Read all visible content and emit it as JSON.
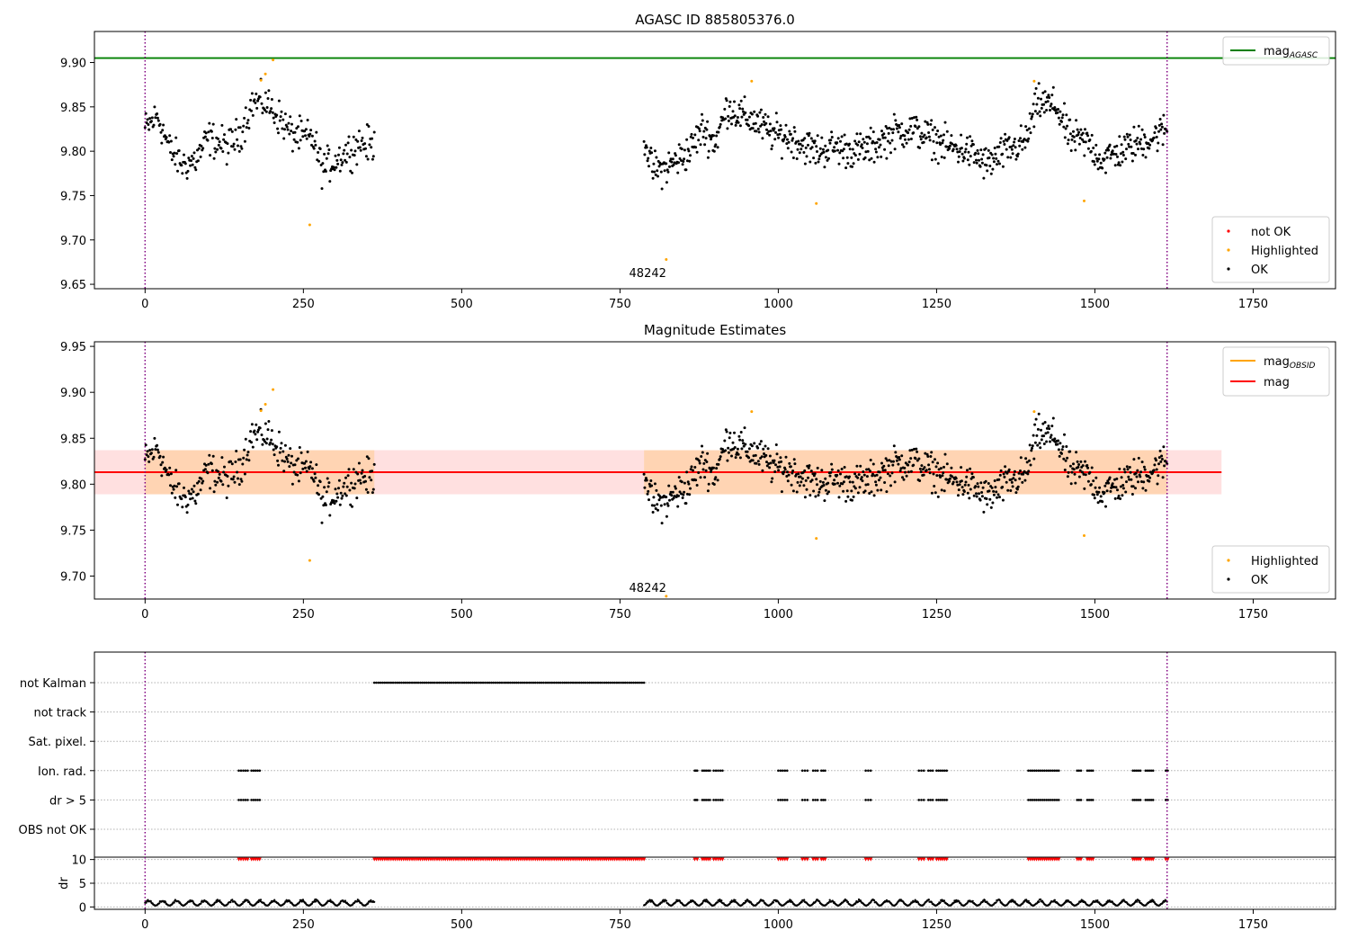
{
  "chart_data": [
    {
      "type": "scatter",
      "title": "AGASC ID 885805376.0",
      "xlim": [
        -80,
        1880
      ],
      "ylim": [
        9.645,
        9.935
      ],
      "xticks": [
        0,
        250,
        500,
        750,
        1000,
        1250,
        1500,
        1750
      ],
      "yticks": [
        9.65,
        9.7,
        9.75,
        9.8,
        9.85,
        9.9
      ],
      "ytick_labels": [
        "9.65",
        "9.70",
        "9.75",
        "9.80",
        "9.85",
        "9.90"
      ],
      "grid": false,
      "vlines": [
        0,
        1614
      ],
      "hline": {
        "name": "mag",
        "subscript": "AGASC",
        "value": 9.905,
        "color": "#008000"
      },
      "annotation": {
        "text": "48242",
        "x": 808,
        "y": 9.658
      },
      "legend_lines": {
        "placement": "upper right",
        "entries": [
          {
            "name": "mag",
            "subscript": "AGASC",
            "color": "#008000"
          }
        ]
      },
      "legend_points": {
        "placement": "lower right",
        "entries": [
          {
            "name": "not OK",
            "color": "#ff0000"
          },
          {
            "name": "Highlighted",
            "color": "#ffa500"
          },
          {
            "name": "OK",
            "color": "#000000"
          }
        ]
      },
      "series": [
        {
          "name": "OK",
          "color": "#000000",
          "segments": [
            {
              "x0": 0,
              "x1": 362,
              "points": 290,
              "knots": [
                [
                  0,
                  9.825
                ],
                [
                  20,
                  9.84
                ],
                [
                  40,
                  9.8
                ],
                [
                  60,
                  9.785
                ],
                [
                  80,
                  9.79
                ],
                [
                  100,
                  9.815
                ],
                [
                  130,
                  9.805
                ],
                [
                  150,
                  9.82
                ],
                [
                  170,
                  9.855
                ],
                [
                  190,
                  9.855
                ],
                [
                  210,
                  9.84
                ],
                [
                  230,
                  9.82
                ],
                [
                  250,
                  9.815
                ],
                [
                  265,
                  9.815
                ],
                [
                  280,
                  9.78
                ],
                [
                  300,
                  9.79
                ],
                [
                  320,
                  9.8
                ],
                [
                  340,
                  9.81
                ],
                [
                  362,
                  9.805
                ]
              ],
              "noise": 0.014
            },
            {
              "x0": 788,
              "x1": 1614,
              "points": 760,
              "knots": [
                [
                  788,
                  9.82
                ],
                [
                  800,
                  9.78
                ],
                [
                  820,
                  9.78
                ],
                [
                  840,
                  9.79
                ],
                [
                  860,
                  9.8
                ],
                [
                  880,
                  9.825
                ],
                [
                  900,
                  9.81
                ],
                [
                  920,
                  9.85
                ],
                [
                  940,
                  9.84
                ],
                [
                  960,
                  9.835
                ],
                [
                  990,
                  9.82
                ],
                [
                  1020,
                  9.815
                ],
                [
                  1060,
                  9.8
                ],
                [
                  1090,
                  9.805
                ],
                [
                  1120,
                  9.8
                ],
                [
                  1150,
                  9.805
                ],
                [
                  1180,
                  9.82
                ],
                [
                  1210,
                  9.825
                ],
                [
                  1240,
                  9.815
                ],
                [
                  1270,
                  9.805
                ],
                [
                  1300,
                  9.8
                ],
                [
                  1330,
                  9.785
                ],
                [
                  1360,
                  9.8
                ],
                [
                  1390,
                  9.81
                ],
                [
                  1410,
                  9.855
                ],
                [
                  1440,
                  9.85
                ],
                [
                  1460,
                  9.815
                ],
                [
                  1490,
                  9.81
                ],
                [
                  1510,
                  9.79
                ],
                [
                  1540,
                  9.8
                ],
                [
                  1570,
                  9.81
                ],
                [
                  1590,
                  9.815
                ],
                [
                  1614,
                  9.825
                ]
              ],
              "noise": 0.014
            }
          ]
        },
        {
          "name": "Highlighted",
          "color": "#ffa500",
          "points": [
            [
              183,
              9.88
            ],
            [
              190,
              9.887
            ],
            [
              202,
              9.903
            ],
            [
              260,
              9.717
            ],
            [
              823,
              9.678
            ],
            [
              958,
              9.879
            ],
            [
              1060,
              9.741
            ],
            [
              1404,
              9.879
            ],
            [
              1483,
              9.744
            ]
          ]
        }
      ]
    },
    {
      "type": "scatter",
      "title": "Magnitude Estimates",
      "xlim": [
        -80,
        1880
      ],
      "ylim": [
        9.675,
        9.955
      ],
      "xticks": [
        0,
        250,
        500,
        750,
        1000,
        1250,
        1500,
        1750
      ],
      "yticks": [
        9.7,
        9.75,
        9.8,
        9.85,
        9.9,
        9.95
      ],
      "ytick_labels": [
        "9.70",
        "9.75",
        "9.80",
        "9.85",
        "9.90",
        "9.95"
      ],
      "grid": false,
      "vlines": [
        0,
        1614
      ],
      "hline": {
        "name": "mag",
        "value": 9.813,
        "color": "#ff0000",
        "band": [
          9.789,
          9.837
        ],
        "band_end": 1700
      },
      "obsid_bands": [
        {
          "x0": 0,
          "x1": 362,
          "value": 9.813,
          "band": [
            9.789,
            9.837
          ]
        },
        {
          "x0": 788,
          "x1": 1614,
          "value": 9.813,
          "band": [
            9.789,
            9.837
          ]
        }
      ],
      "annotation": {
        "text": "48242",
        "x": 808,
        "y": 9.683
      },
      "legend_lines": {
        "placement": "upper right",
        "entries": [
          {
            "name": "mag",
            "subscript": "OBSID",
            "color": "#ffa500"
          },
          {
            "name": "mag",
            "color": "#ff0000"
          }
        ]
      },
      "legend_points": {
        "placement": "lower right",
        "entries": [
          {
            "name": "Highlighted",
            "color": "#ffa500"
          },
          {
            "name": "OK",
            "color": "#000000"
          }
        ]
      },
      "series_same_as_panel": 0
    },
    {
      "type": "scatter",
      "title": "",
      "xlim": [
        -80,
        1880
      ],
      "xticks": [
        0,
        250,
        500,
        750,
        1000,
        1250,
        1500,
        1750
      ],
      "vlines": [
        0,
        1614
      ],
      "flag_rows": [
        {
          "label": "not Kalman",
          "color": "#000000",
          "ranges": [
            [
              362,
              788
            ]
          ]
        },
        {
          "label": "not track",
          "color": "#000000",
          "ranges": []
        },
        {
          "label": "Sat. pixel.",
          "color": "#000000",
          "ranges": []
        },
        {
          "label": "Ion. rad.",
          "color": "#000000",
          "ranges": [
            [
              148,
              162
            ],
            [
              168,
              181
            ],
            [
              868,
              872
            ],
            [
              880,
              892
            ],
            [
              898,
              912
            ],
            [
              1000,
              1014
            ],
            [
              1038,
              1046
            ],
            [
              1055,
              1062
            ],
            [
              1068,
              1074
            ],
            [
              1138,
              1146
            ],
            [
              1222,
              1230
            ],
            [
              1237,
              1244
            ],
            [
              1250,
              1266
            ],
            [
              1395,
              1443
            ],
            [
              1472,
              1478
            ],
            [
              1488,
              1497
            ],
            [
              1560,
              1572
            ],
            [
              1580,
              1592
            ],
            [
              1612,
              1615
            ]
          ]
        },
        {
          "label": "dr > 5",
          "color": "#000000",
          "ranges": [
            [
              148,
              162
            ],
            [
              168,
              181
            ],
            [
              868,
              872
            ],
            [
              880,
              892
            ],
            [
              898,
              912
            ],
            [
              1000,
              1014
            ],
            [
              1038,
              1046
            ],
            [
              1055,
              1062
            ],
            [
              1068,
              1074
            ],
            [
              1138,
              1146
            ],
            [
              1222,
              1230
            ],
            [
              1237,
              1244
            ],
            [
              1250,
              1266
            ],
            [
              1395,
              1443
            ],
            [
              1472,
              1478
            ],
            [
              1488,
              1497
            ],
            [
              1560,
              1572
            ],
            [
              1580,
              1592
            ],
            [
              1612,
              1615
            ]
          ]
        },
        {
          "label": "OBS not OK",
          "color": "#000000",
          "ranges": []
        }
      ],
      "dr_panel": {
        "ylabel": "dr",
        "ylim": [
          -0.5,
          10.5
        ],
        "yticks": [
          0,
          5,
          10
        ],
        "ytick_labels": [
          "0",
          "5",
          "10"
        ],
        "clip_marker_color": "#ff0000",
        "clipped_ranges": [
          [
            148,
            162
          ],
          [
            168,
            181
          ],
          [
            362,
            788
          ],
          [
            868,
            872
          ],
          [
            880,
            892
          ],
          [
            898,
            912
          ],
          [
            1000,
            1014
          ],
          [
            1038,
            1046
          ],
          [
            1055,
            1062
          ],
          [
            1068,
            1074
          ],
          [
            1138,
            1146
          ],
          [
            1222,
            1230
          ],
          [
            1237,
            1244
          ],
          [
            1250,
            1266
          ],
          [
            1395,
            1443
          ],
          [
            1472,
            1478
          ],
          [
            1488,
            1497
          ],
          [
            1560,
            1572
          ],
          [
            1580,
            1592
          ],
          [
            1612,
            1615
          ]
        ],
        "dr_ranges": [
          [
            0,
            362
          ],
          [
            788,
            1614
          ]
        ],
        "dr_typical": [
          0.3,
          1.6
        ]
      }
    }
  ]
}
